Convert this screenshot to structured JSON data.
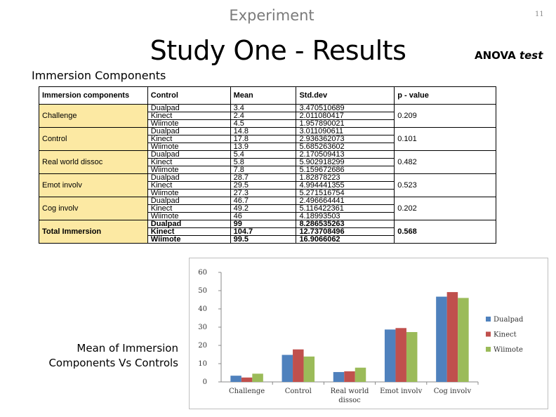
{
  "slide": {
    "section": "Experiment",
    "page_number": "11",
    "title": "Study One - Results",
    "anova_word": "ANOVA",
    "anova_italic": "test",
    "subtitle": "Immersion Components",
    "chart_caption_line1": "Mean of Immersion",
    "chart_caption_line2": "Components Vs Controls"
  },
  "table": {
    "headers": [
      "Immersion components",
      "Control",
      "Mean",
      "Std.dev",
      "p - value"
    ],
    "groups": [
      {
        "name": "Challenge",
        "p": "0.209",
        "rows": [
          [
            "Dualpad",
            "3.4",
            "3.470510689"
          ],
          [
            "Kinect",
            "2.4",
            "2.011080417"
          ],
          [
            "Wiimote",
            "4.5",
            "1.957890021"
          ]
        ]
      },
      {
        "name": "Control",
        "p": "0.101",
        "rows": [
          [
            "Dualpad",
            "14.8",
            "3.011090611"
          ],
          [
            "Kinect",
            "17.8",
            "2.936362073"
          ],
          [
            "Wiimote",
            "13.9",
            "5.685263602"
          ]
        ]
      },
      {
        "name": "Real world dissoc",
        "p": "0.482",
        "rows": [
          [
            "Dualpad",
            "5.4",
            "2.170509413"
          ],
          [
            "Kinect",
            "5.8",
            "5.902918299"
          ],
          [
            "Wiimote",
            "7.8",
            "5.159672686"
          ]
        ]
      },
      {
        "name": "Emot involv",
        "p": "0.523",
        "rows": [
          [
            "Dualpad",
            "28.7",
            "1.82878223"
          ],
          [
            "Kinect",
            "29.5",
            "4.994441355"
          ],
          [
            "Wiimote",
            "27.3",
            "5.271516754"
          ]
        ]
      },
      {
        "name": "Cog involv",
        "p": "0.202",
        "rows": [
          [
            "Dualpad",
            "46.7",
            "2.496664441"
          ],
          [
            "Kinect",
            "49.2",
            "5.116422361"
          ],
          [
            "Wiimote",
            "46",
            "4.18993503"
          ]
        ]
      },
      {
        "name": "Total Immersion",
        "p": "0.568",
        "total": true,
        "rows": [
          [
            "Dualpad",
            "99",
            "8.286535263"
          ],
          [
            "Kinect",
            "104.7",
            "12.73708496"
          ],
          [
            "Wiimote",
            "99.5",
            "16.9066062"
          ]
        ]
      }
    ]
  },
  "chart_data": {
    "type": "bar",
    "title": "",
    "xlabel": "",
    "ylabel": "",
    "ylim": [
      0,
      60
    ],
    "yticks": [
      0,
      10,
      20,
      30,
      40,
      50,
      60
    ],
    "grid": false,
    "legend_position": "right",
    "categories": [
      "Challenge",
      "Control",
      "Real world dissoc",
      "Emot involv",
      "Cog involv"
    ],
    "category_lines": [
      [
        "Challenge"
      ],
      [
        "Control"
      ],
      [
        "Real world",
        "dissoc"
      ],
      [
        "Emot involv"
      ],
      [
        "Cog involv"
      ]
    ],
    "series": [
      {
        "name": "Dualpad",
        "color": "#4f81bd",
        "values": [
          3.4,
          14.8,
          5.4,
          28.7,
          46.7
        ]
      },
      {
        "name": "Kinect",
        "color": "#c0504d",
        "values": [
          2.4,
          17.8,
          5.8,
          29.5,
          49.2
        ]
      },
      {
        "name": "Wiimote",
        "color": "#9bbb59",
        "values": [
          4.5,
          13.9,
          7.8,
          27.3,
          46
        ]
      }
    ]
  }
}
